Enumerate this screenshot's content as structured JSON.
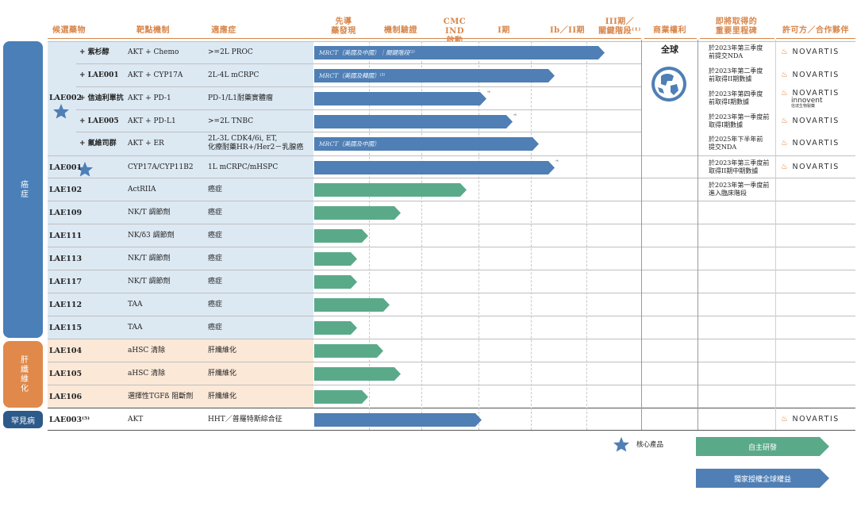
{
  "headers": {
    "candidate": "候選藥物",
    "target": "靶點機制",
    "indication": "適應症",
    "discovery": "先導\n藥發現",
    "validation": "機制驗證",
    "cmc": "CMC IND\n啟動",
    "phase1": "I期",
    "phase2": "Ib／II期",
    "phase3": "III期／\n關鍵階段⁽¹⁾",
    "rights": "商業權利",
    "milestones": "即將取得的\n重要里程碑",
    "partners": "許可方／合作夥伴"
  },
  "categories": {
    "oncology": "癌症",
    "fibrosis": "肝纖維化",
    "rare": "罕見病"
  },
  "rights_text": "全球",
  "lae002_label": "LAE002",
  "rows": [
    {
      "name": "+ 紫杉醇",
      "target": "AKT + Chemo",
      "indication": ">=2L PROC",
      "bar_text": "MRCT（美國及中國）｜關鍵階段⁽²⁾",
      "milestone": "於2023年第三季度\n前提交NDA",
      "partner": "NOVARTIS"
    },
    {
      "name": "+ LAE001",
      "target": "AKT + CYP17A",
      "indication": "2L-4L mCRPC",
      "bar_text": "MRCT（美國及韓國）⁽³⁾",
      "milestone": "於2023年第二季度\n前取得II期數據",
      "partner": "NOVARTIS"
    },
    {
      "name": "+ 信迪利單抗",
      "target": "AKT + PD-1",
      "indication": "PD-1/L1耐藥實體瘤",
      "bar_text": "",
      "note": "⁽⁴⁾",
      "milestone": "於2023年第四季度\n前取得I期數據",
      "partner": "NOVARTIS",
      "partner2": "innovent",
      "partner2_sub": "信達生物製藥"
    },
    {
      "name": "+ LAE005",
      "target": "AKT + PD-L1",
      "indication": ">=2L TNBC",
      "bar_text": "",
      "note": "⁽⁴⁾",
      "milestone": "於2023年第一季度前\n取得I期數據",
      "partner": "NOVARTIS"
    },
    {
      "name": "+ 氟維司群",
      "target": "AKT + ER",
      "indication": "2L-3L CDK4/6i, ET,\n化療耐藥HR+/Her2－乳腺癌",
      "bar_text": "MRCT（美國及中國）",
      "milestone": "於2025年下半年前\n提交NDA",
      "partner": "NOVARTIS"
    },
    {
      "name": "LAE001",
      "target": "CYP17A/CYP11B2",
      "indication": "1L mCRPC/mHSPC",
      "bar_text": "",
      "note": "⁽⁴⁾",
      "milestone": "於2023年第三季度前\n取得II期中期數據",
      "partner": "NOVARTIS"
    },
    {
      "name": "LAE102",
      "target": "ActRIIA",
      "indication": "癌症",
      "bar_text": "",
      "milestone": "於2023年第一季度前\n進入臨床階段",
      "partner": ""
    },
    {
      "name": "LAE109",
      "target": "NK/T 調節劑",
      "indication": "癌症",
      "bar_text": "",
      "milestone": "",
      "partner": ""
    },
    {
      "name": "LAE111",
      "target": "NK/δ3 調節劑",
      "indication": "癌症",
      "bar_text": "",
      "milestone": "",
      "partner": ""
    },
    {
      "name": "LAE113",
      "target": "NK/T 調節劑",
      "indication": "癌症",
      "bar_text": "",
      "milestone": "",
      "partner": ""
    },
    {
      "name": "LAE117",
      "target": "NK/T 調節劑",
      "indication": "癌症",
      "bar_text": "",
      "milestone": "",
      "partner": ""
    },
    {
      "name": "LAE112",
      "target": "TAA",
      "indication": "癌症",
      "bar_text": "",
      "milestone": "",
      "partner": ""
    },
    {
      "name": "LAE115",
      "target": "TAA",
      "indication": "癌症",
      "bar_text": "",
      "milestone": "",
      "partner": ""
    },
    {
      "name": "LAE104",
      "target": "aHSC 清除",
      "indication": "肝纖維化",
      "bar_text": "",
      "milestone": "",
      "partner": ""
    },
    {
      "name": "LAE105",
      "target": "aHSC 清除",
      "indication": "肝纖維化",
      "bar_text": "",
      "milestone": "",
      "partner": ""
    },
    {
      "name": "LAE106",
      "target": "選擇性TGFß 阻斷劑",
      "indication": "肝纖維化",
      "bar_text": "",
      "milestone": "",
      "partner": ""
    },
    {
      "name": "LAE003⁽⁵⁾",
      "target": "AKT",
      "indication": "HHT／普羅特斯綜合征",
      "bar_text": "",
      "milestone": "",
      "partner": "NOVARTIS"
    }
  ],
  "legend": {
    "core": "核心產品",
    "inhouse": "自主研發",
    "licensed": "獨家授權全球權益"
  },
  "colors": {
    "blue": "#4f7fb5",
    "green": "#5aaa8a",
    "orange_header": "#d8864a",
    "sidebar_onc": "#4a7fb8",
    "sidebar_fib": "#e0894a",
    "sidebar_rare": "#2e5a8a"
  }
}
